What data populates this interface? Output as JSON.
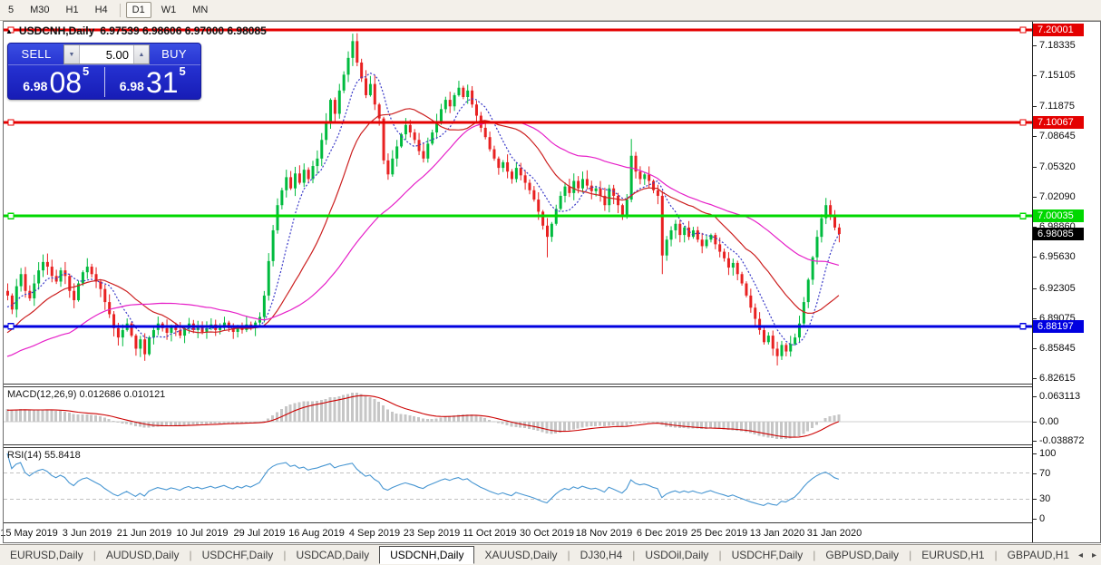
{
  "toolbar": {
    "timeframes": [
      "5",
      "M30",
      "H1",
      "H4",
      "D1",
      "W1",
      "MN"
    ],
    "active": "D1"
  },
  "chart_header": {
    "collapse_marker": "▲",
    "symbol": "USDCNH,Daily",
    "ohlc": "6.97539 6.98606 6.97000 6.98085"
  },
  "trade_panel": {
    "sell_label": "SELL",
    "buy_label": "BUY",
    "volume": "5.00",
    "volume_down_icon": "▼",
    "volume_up_icon": "▲",
    "sell_price": {
      "prefix": "6.98",
      "digits": "08",
      "sup": "5"
    },
    "buy_price": {
      "prefix": "6.98",
      "digits": "31",
      "sup": "5"
    }
  },
  "chart_data": {
    "type": "candlestick",
    "symbol": "USDCNH",
    "timeframe": "Daily",
    "ohlc": {
      "open": "6.97539",
      "high": "6.98606",
      "low": "6.97000",
      "close": "6.98085"
    },
    "x_labels": [
      "15 May 2019",
      "3 Jun 2019",
      "21 Jun 2019",
      "10 Jul 2019",
      "29 Jul 2019",
      "16 Aug 2019",
      "4 Sep 2019",
      "23 Sep 2019",
      "11 Oct 2019",
      "30 Oct 2019",
      "18 Nov 2019",
      "6 Dec 2019",
      "25 Dec 2019",
      "13 Jan 2020",
      "31 Jan 2020"
    ],
    "x_label_indices": [
      5,
      18,
      31,
      44,
      57,
      70,
      83,
      96,
      109,
      122,
      135,
      148,
      161,
      174,
      187
    ],
    "y_axis_ticks": [
      "7.18335",
      "7.15105",
      "7.11875",
      "7.08645",
      "7.05320",
      "7.02090",
      "6.98860",
      "6.95630",
      "6.92305",
      "6.89075",
      "6.85845",
      "6.82615"
    ],
    "y_range_top": 7.2078,
    "y_range_bottom": 6.8205,
    "horizontal_lines": [
      {
        "price": 7.20001,
        "label": "7.20001",
        "color": "#e40000"
      },
      {
        "price": 7.10067,
        "label": "7.10067",
        "color": "#e40000"
      },
      {
        "price": 7.00035,
        "label": "7.00035",
        "color": "#00d800"
      },
      {
        "price": 6.88197,
        "label": "6.88197",
        "color": "#0000e0"
      }
    ],
    "current_price": {
      "price": 6.98085,
      "label": "6.98085",
      "chip_color": "#000000"
    },
    "up_color": "#00bb3e",
    "down_color": "#e82121",
    "moving_averages": [
      {
        "period": 8,
        "color": "#3a3ac8",
        "dash": "2,2"
      },
      {
        "period": 20,
        "color": "#cc2020",
        "dash": ""
      },
      {
        "period": 45,
        "color": "#e620c8",
        "dash": ""
      }
    ],
    "closes": [
      6.915,
      6.9,
      6.925,
      6.938,
      6.92,
      6.912,
      6.928,
      6.942,
      6.951,
      6.946,
      6.936,
      6.93,
      6.942,
      6.936,
      6.92,
      6.91,
      6.928,
      6.94,
      6.946,
      6.938,
      6.93,
      6.922,
      6.908,
      6.895,
      6.88,
      6.87,
      6.878,
      6.885,
      6.872,
      6.858,
      6.868,
      6.852,
      6.87,
      6.878,
      6.885,
      6.88,
      6.875,
      6.882,
      6.878,
      6.872,
      6.88,
      6.885,
      6.878,
      6.882,
      6.876,
      6.88,
      6.884,
      6.878,
      6.882,
      6.886,
      6.88,
      6.876,
      6.882,
      6.878,
      6.884,
      6.88,
      6.886,
      6.892,
      6.915,
      6.952,
      6.985,
      7.012,
      7.028,
      7.042,
      7.03,
      7.046,
      7.036,
      7.05,
      7.04,
      7.054,
      7.062,
      7.082,
      7.102,
      7.125,
      7.11,
      7.135,
      7.152,
      7.17,
      7.188,
      7.165,
      7.148,
      7.13,
      7.142,
      7.12,
      7.105,
      7.06,
      7.045,
      7.062,
      7.075,
      7.088,
      7.098,
      7.09,
      7.082,
      7.07,
      7.062,
      7.078,
      7.09,
      7.102,
      7.115,
      7.125,
      7.118,
      7.13,
      7.138,
      7.128,
      7.135,
      7.12,
      7.108,
      7.095,
      7.085,
      7.072,
      7.062,
      7.052,
      7.058,
      7.048,
      7.04,
      7.052,
      7.044,
      7.036,
      7.028,
      7.018,
      7.005,
      6.99,
      6.978,
      6.992,
      7.008,
      7.022,
      7.032,
      7.025,
      7.038,
      7.03,
      7.04,
      7.033,
      7.027,
      7.03,
      7.022,
      7.012,
      7.03,
      7.022,
      7.012,
      7.002,
      7.018,
      7.065,
      7.048,
      7.04,
      7.045,
      7.038,
      7.028,
      7.022,
      6.958,
      6.975,
      6.985,
      6.992,
      6.98,
      6.988,
      6.978,
      6.985,
      6.975,
      6.968,
      6.975,
      6.98,
      6.97,
      6.962,
      6.955,
      6.945,
      6.95,
      6.938,
      6.928,
      6.915,
      6.902,
      6.89,
      6.878,
      6.865,
      6.872,
      6.858,
      6.85,
      6.862,
      6.855,
      6.863,
      6.87,
      6.885,
      6.908,
      6.932,
      6.956,
      6.978,
      6.998,
      7.012,
      7.002,
      6.988,
      6.981
    ],
    "wick_overrides": {
      "31": [
        null,
        6.845
      ],
      "78": [
        7.196,
        null
      ],
      "122": [
        null,
        6.956
      ],
      "141": [
        7.083,
        null
      ],
      "148": [
        null,
        6.938
      ],
      "174": [
        null,
        6.84
      ]
    }
  },
  "indicators": {
    "macd": {
      "name": "MACD(12,26,9)",
      "values": "0.012686 0.010121",
      "axis_labels": [
        "0.063113",
        "0.00",
        "-0.038872"
      ],
      "histogram_color": "#c6c6c6",
      "signal_color": "#cc0000",
      "fast": 12,
      "slow": 26,
      "signal": 9
    },
    "rsi": {
      "name": "RSI(14)",
      "value": "55.8418",
      "axis_labels": [
        "100",
        "70",
        "30",
        "0"
      ],
      "levels": [
        70,
        30
      ],
      "line_color": "#4796d2",
      "period": 14
    }
  },
  "tab_bar": {
    "tabs": [
      "EURUSD,Daily",
      "AUDUSD,Daily",
      "USDCHF,Daily",
      "USDCAD,Daily",
      "USDCNH,Daily",
      "XAUUSD,Daily",
      "DJ30,H4",
      "USDOil,Daily",
      "USDCHF,Daily",
      "GBPUSD,Daily",
      "EURUSD,H1",
      "GBPAUD,H1"
    ],
    "active_index": 4,
    "scroll_left_icon": "◂",
    "scroll_right_icon": "▸"
  }
}
